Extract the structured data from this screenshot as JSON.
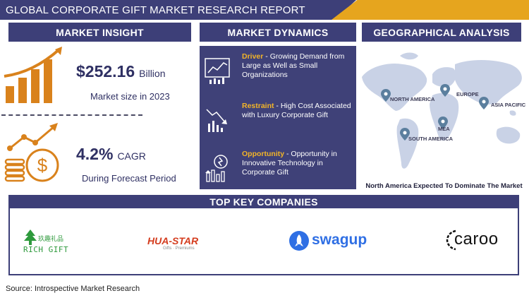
{
  "title": "GLOBAL CORPORATE GIFT MARKET RESEARCH REPORT",
  "sections": {
    "market_insight": {
      "header": "MARKET INSIGHT",
      "market_size_value": "$252.16",
      "market_size_unit": "Billion",
      "market_size_label": "Market size in 2023",
      "cagr_value": "4.2%",
      "cagr_unit": "CAGR",
      "cagr_label": "During Forecast Period"
    },
    "market_dynamics": {
      "header": "MARKET DYNAMICS",
      "items": [
        {
          "label": "Driver",
          "text": " - Growing Demand from Large as Well as Small Organizations",
          "icon": "chart-icon"
        },
        {
          "label": "Restraint",
          "text": " - High Cost Associated with Luxury Corporate Gift",
          "icon": "downtrend-icon"
        },
        {
          "label": "Opportunity",
          "text": " - Opportunity in Innovative Technology in Corporate Gift",
          "icon": "growth-icon"
        }
      ]
    },
    "geographical_analysis": {
      "header": "GEOGRAPHICAL ANALYSIS",
      "regions": [
        "NORTH AMERICA",
        "EUROPE",
        "ASIA PACIFIC",
        "MEA",
        "SOUTH AMERICA"
      ],
      "caption": "North America Expected To Dominate The Market"
    },
    "top_key_companies": {
      "header": "TOP KEY COMPANIES",
      "companies": [
        {
          "name": "RICH GIFT",
          "tagline": "玖趣礼品"
        },
        {
          "name": "HUA-STAR",
          "tagline": "Gifts · Premiums"
        },
        {
          "name": "swagup"
        },
        {
          "name": "caroo"
        }
      ]
    }
  },
  "source": "Source: Introspective Market Research",
  "colors": {
    "navy": "#3d3f78",
    "gold": "#e6a51e",
    "orange": "#d9821c",
    "map": "#c9d2e6"
  }
}
